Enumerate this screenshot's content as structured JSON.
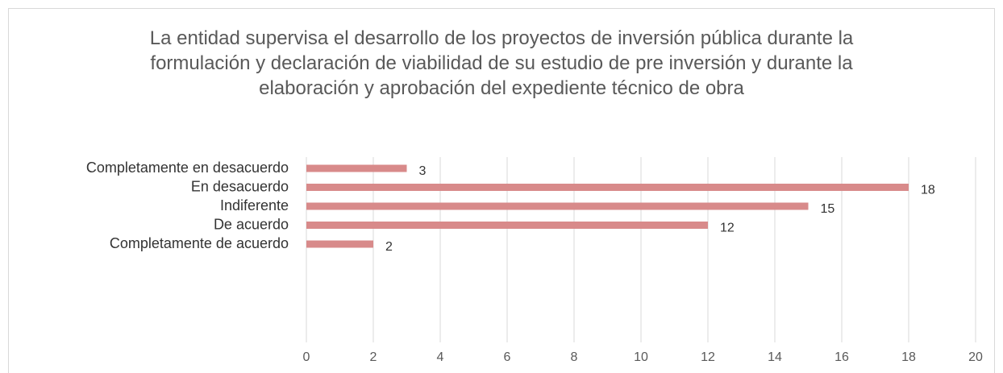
{
  "chart_data": {
    "type": "bar",
    "orientation": "horizontal",
    "title": "La entidad supervisa el desarrollo de los proyectos de inversión pública durante la formulación y declaración de viabilidad de su estudio de pre inversión y durante la elaboración y aprobación del expediente técnico de obra",
    "categories": [
      "Completamente en desacuerdo",
      "En desacuerdo",
      "Indiferente",
      "De acuerdo",
      "Completamente de acuerdo"
    ],
    "values": [
      3,
      18,
      15,
      12,
      2
    ],
    "color": "#d88a8a",
    "xlim": [
      0,
      20
    ],
    "xticks": [
      0,
      2,
      4,
      6,
      8,
      10,
      12,
      14,
      16,
      18,
      20
    ],
    "grid": true
  }
}
